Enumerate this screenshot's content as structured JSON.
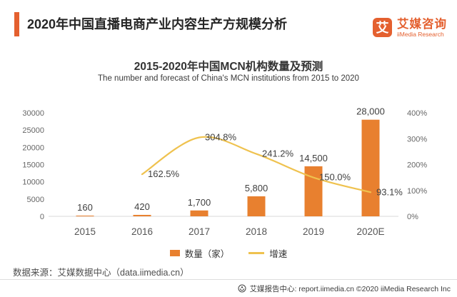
{
  "header": {
    "title": "2020年中国直播电商产业内容生产方规模分析",
    "logo": {
      "glyph": "艾",
      "name_cn": "艾媒咨询",
      "name_en": "iiMedia Research"
    }
  },
  "chart": {
    "title": "2015-2020年中国MCN机构数量及预测",
    "subtitle": "The number and forecast of China's MCN institutions from 2015 to 2020"
  },
  "chart_data": {
    "type": "bar",
    "categories": [
      "2015",
      "2016",
      "2017",
      "2018",
      "2019",
      "2020E"
    ],
    "series": [
      {
        "name": "数量（家）",
        "type": "bar",
        "axis": "left",
        "color": "#E8802F",
        "values": [
          160,
          420,
          1700,
          5800,
          14500,
          28000
        ],
        "labels": [
          "160",
          "420",
          "1,700",
          "5,800",
          "14,500",
          "28,000"
        ]
      },
      {
        "name": "增速",
        "type": "line",
        "axis": "right",
        "color": "#EFC24F",
        "values": [
          null,
          162.5,
          304.8,
          241.2,
          150.0,
          93.1
        ],
        "labels": [
          null,
          "162.5%",
          "304.8%",
          "241.2%",
          "150.0%",
          "93.1%"
        ]
      }
    ],
    "left_axis": {
      "min": 0,
      "max": 30000,
      "ticks": [
        "0",
        "5000",
        "10000",
        "15000",
        "20000",
        "25000",
        "30000"
      ]
    },
    "right_axis": {
      "min": 0,
      "max": 400,
      "ticks": [
        "0%",
        "100%",
        "200%",
        "300%",
        "400%"
      ]
    },
    "grid": false,
    "legend_position": "bottom"
  },
  "legend": {
    "bar_label": "数量（家）",
    "line_label": "增速"
  },
  "source": "数据来源：艾媒数据中心（data.iimedia.cn）",
  "footer": {
    "text": "艾媒报告中心: report.iimedia.cn  ©2020  iiMedia Research  Inc"
  },
  "colors": {
    "brand": "#E4602F",
    "bar": "#E8802F",
    "line": "#EFC24F",
    "axis_line": "#D9D9D9"
  }
}
